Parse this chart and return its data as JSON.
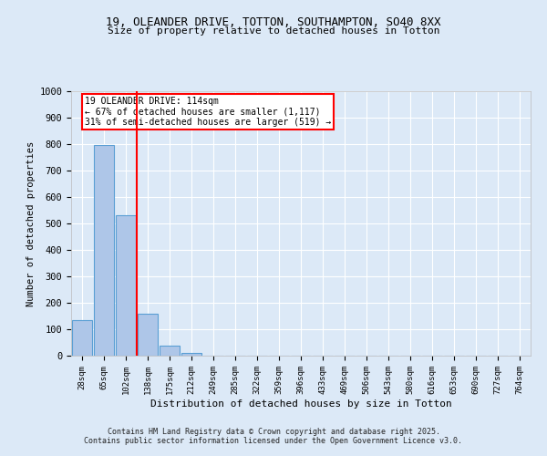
{
  "title_line1": "19, OLEANDER DRIVE, TOTTON, SOUTHAMPTON, SO40 8XX",
  "title_line2": "Size of property relative to detached houses in Totton",
  "xlabel": "Distribution of detached houses by size in Totton",
  "ylabel": "Number of detached properties",
  "bar_labels": [
    "28sqm",
    "65sqm",
    "102sqm",
    "138sqm",
    "175sqm",
    "212sqm",
    "249sqm",
    "285sqm",
    "322sqm",
    "359sqm",
    "396sqm",
    "433sqm",
    "469sqm",
    "506sqm",
    "543sqm",
    "580sqm",
    "616sqm",
    "653sqm",
    "690sqm",
    "727sqm",
    "764sqm"
  ],
  "bar_values": [
    135,
    795,
    530,
    160,
    37,
    12,
    0,
    0,
    0,
    0,
    0,
    0,
    0,
    0,
    0,
    0,
    0,
    0,
    0,
    0,
    0
  ],
  "bar_color": "#aec6e8",
  "bar_edgecolor": "#5a9fd4",
  "background_color": "#dce9f7",
  "grid_color": "#ffffff",
  "red_line_x": 2.5,
  "annotation_text": "19 OLEANDER DRIVE: 114sqm\n← 67% of detached houses are smaller (1,117)\n31% of semi-detached houses are larger (519) →",
  "ylim": [
    0,
    1000
  ],
  "yticks": [
    0,
    100,
    200,
    300,
    400,
    500,
    600,
    700,
    800,
    900,
    1000
  ],
  "footer_line1": "Contains HM Land Registry data © Crown copyright and database right 2025.",
  "footer_line2": "Contains public sector information licensed under the Open Government Licence v3.0."
}
